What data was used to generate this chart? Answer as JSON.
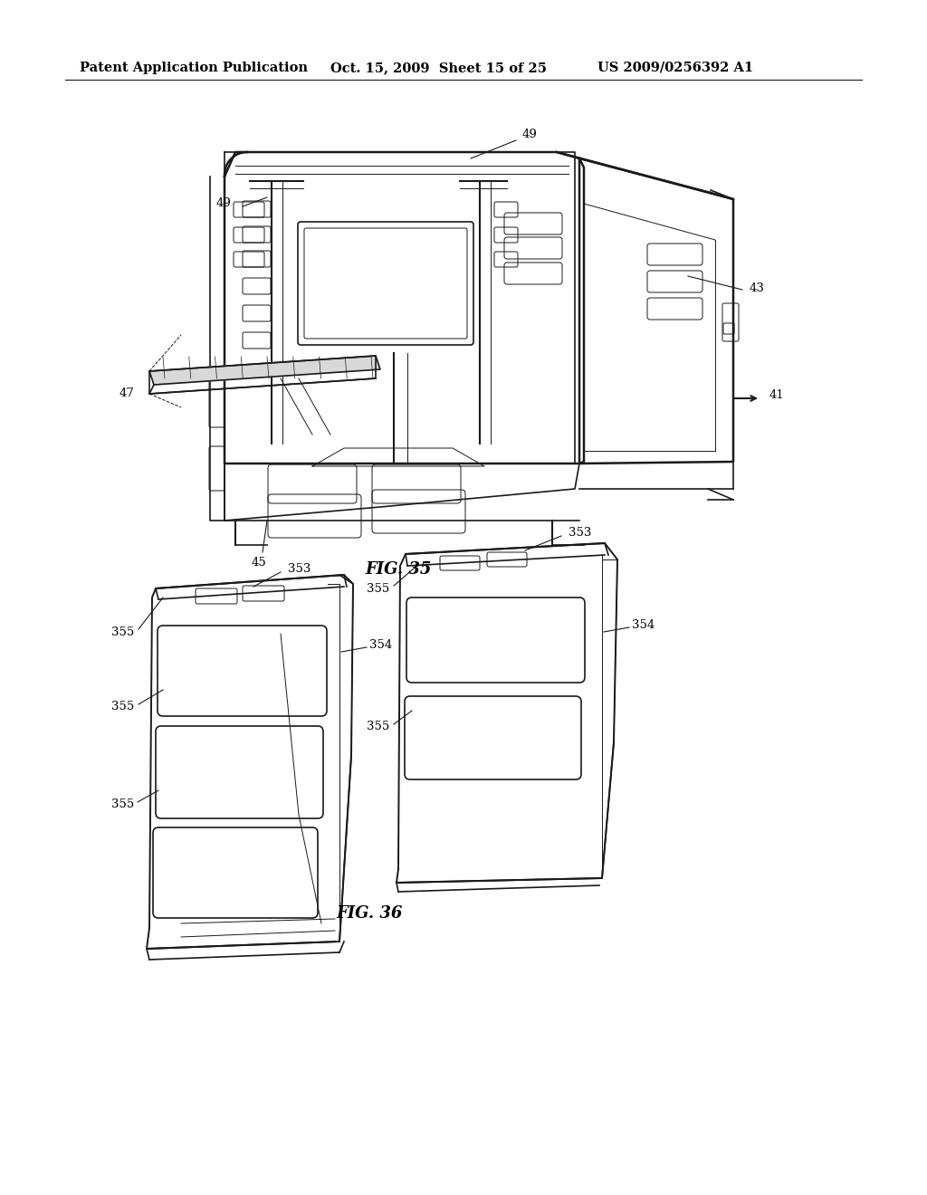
{
  "bg_color": "#ffffff",
  "header_left": "Patent Application Publication",
  "header_middle": "Oct. 15, 2009  Sheet 15 of 25",
  "header_right": "US 2009/0256392 A1",
  "fig35_label": "FIG. 35",
  "fig36_label": "FIG. 36",
  "line_color": "#1a1a1a",
  "text_color": "#000000",
  "font_size_header": 10.5,
  "font_size_labels": 9.5,
  "font_size_fig": 13
}
